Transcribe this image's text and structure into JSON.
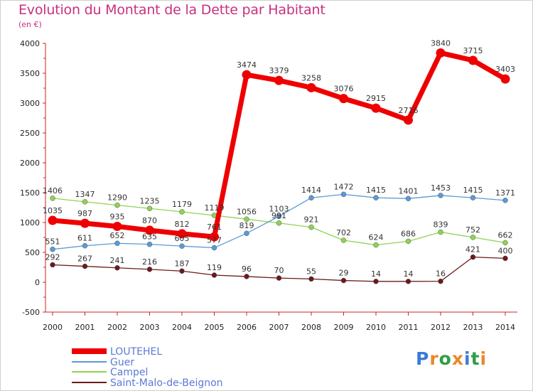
{
  "header": {
    "title": "Evolution du Montant de la Dette par Habitant",
    "unit": "(en €)"
  },
  "logo": {
    "text": "Proxiti"
  },
  "colors": {
    "title": "#c8307f",
    "axis": "#cc2222",
    "LOUTEHEL": "#ee0000",
    "Guer": "#5b9ad5",
    "Campel": "#8fd353",
    "Saint-Malo-de-Beignon": "#6b1a1a"
  },
  "chart_data": {
    "type": "line",
    "title": "Evolution du Montant de la Dette par Habitant",
    "subtitle": "(en €)",
    "x": [
      "2000",
      "2001",
      "2002",
      "2003",
      "2004",
      "2005",
      "2006",
      "2007",
      "2008",
      "2009",
      "2010",
      "2011",
      "2012",
      "2013",
      "2014"
    ],
    "ylim": [
      -500,
      4000
    ],
    "yticks": [
      "-500",
      "0",
      "500",
      "1000",
      "1500",
      "2000",
      "2500",
      "3000",
      "3500",
      "4000"
    ],
    "grid": false,
    "legend_position": "bottom-left",
    "series": [
      {
        "name": "LOUTEHEL",
        "values": [
          1035,
          987,
          935,
          870,
          812,
          761,
          3474,
          3379,
          3258,
          3076,
          2915,
          2716,
          3840,
          3715,
          3403
        ]
      },
      {
        "name": "Guer",
        "values": [
          551,
          611,
          652,
          635,
          605,
          577,
          819,
          1103,
          1414,
          1472,
          1415,
          1401,
          1453,
          1415,
          1371
        ]
      },
      {
        "name": "Campel",
        "values": [
          1406,
          1347,
          1290,
          1235,
          1179,
          1119,
          1056,
          991,
          921,
          702,
          624,
          686,
          839,
          752,
          662
        ]
      },
      {
        "name": "Saint-Malo-de-Beignon",
        "values": [
          292,
          267,
          241,
          216,
          187,
          119,
          96,
          70,
          55,
          29,
          14,
          14,
          16,
          421,
          400
        ]
      }
    ]
  }
}
